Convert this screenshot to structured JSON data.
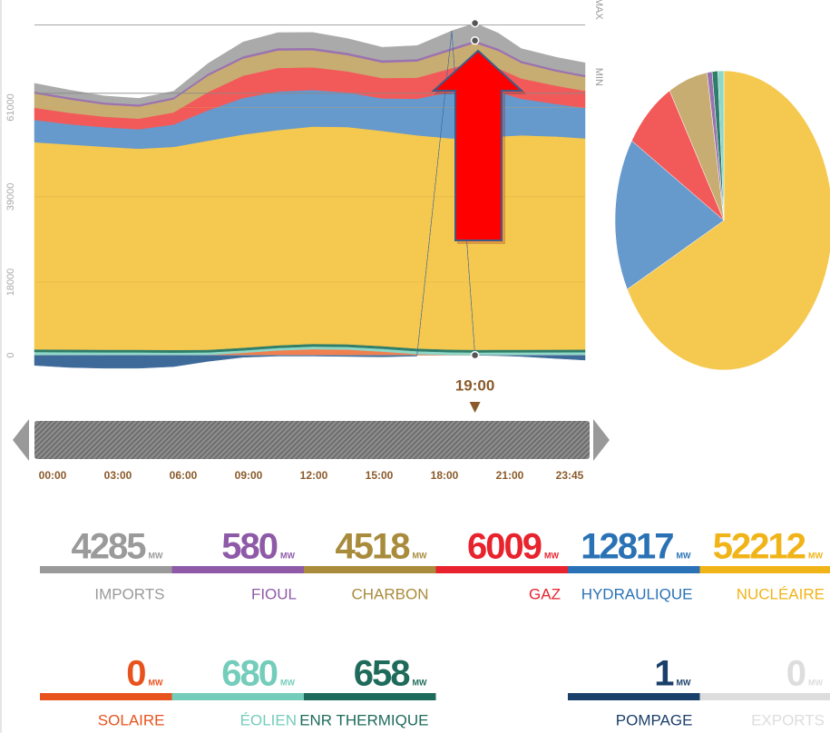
{
  "chart_data": [
    {
      "type": "area",
      "x": [
        0,
        1.5,
        3,
        4.5,
        6,
        7.5,
        9,
        10.5,
        12,
        13.5,
        15,
        16.5,
        18,
        19,
        20,
        21,
        22.5,
        23.75
      ],
      "xlim": [
        0,
        23.75
      ],
      "xticks": [
        {
          "value": 0,
          "label": "00:00"
        },
        {
          "value": 3,
          "label": "03:00"
        },
        {
          "value": 6,
          "label": "06:00"
        },
        {
          "value": 9,
          "label": "09:00"
        },
        {
          "value": 12,
          "label": "12:00"
        },
        {
          "value": 15,
          "label": "15:00"
        },
        {
          "value": 18,
          "label": "18:00"
        },
        {
          "value": 21,
          "label": "21:00"
        },
        {
          "value": 23.75,
          "label": "23:45"
        }
      ],
      "ylim": [
        -3000,
        83000
      ],
      "yticks": [
        0,
        18000,
        39000,
        61000
      ],
      "grid": true,
      "annotations": [
        {
          "label": "MAX",
          "value": 81300
        },
        {
          "label": "MIN",
          "value": 64500
        }
      ],
      "cursor": {
        "value": 19,
        "label": "19:00"
      },
      "series": [
        {
          "name": "Solaire",
          "color": "#f08050",
          "values": [
            0,
            0,
            0,
            0,
            0,
            100,
            600,
            1200,
            1500,
            1400,
            900,
            300,
            50,
            0,
            0,
            0,
            0,
            0
          ]
        },
        {
          "name": "Éolien",
          "color": "#8ed8c8",
          "values": [
            800,
            750,
            700,
            700,
            650,
            600,
            600,
            600,
            650,
            650,
            700,
            700,
            680,
            680,
            700,
            700,
            720,
            750
          ]
        },
        {
          "name": "ENR thermique",
          "color": "#2f7d6b",
          "values": [
            650,
            650,
            650,
            650,
            650,
            650,
            650,
            650,
            650,
            650,
            650,
            650,
            658,
            658,
            650,
            650,
            650,
            650
          ]
        },
        {
          "name": "Nucléaire",
          "color": "#f5c84f",
          "values": [
            51000,
            50500,
            50000,
            49500,
            50000,
            51500,
            52500,
            53000,
            53500,
            53500,
            53000,
            52500,
            52000,
            52212,
            52500,
            52800,
            52500,
            52000
          ]
        },
        {
          "name": "Hydraulique",
          "color": "#6699cc",
          "values": [
            5500,
            5000,
            4800,
            4800,
            5500,
            7500,
            9000,
            9500,
            9000,
            8500,
            8000,
            9000,
            11500,
            12817,
            11000,
            9000,
            8000,
            7500
          ]
        },
        {
          "name": "Gaz",
          "color": "#f25a5a",
          "values": [
            3000,
            2800,
            2600,
            2600,
            3000,
            4500,
            5500,
            5800,
            5600,
            5200,
            5000,
            5200,
            5800,
            6009,
            5800,
            5000,
            4500,
            4200
          ]
        },
        {
          "name": "Charbon",
          "color": "#c8ad72",
          "values": [
            3500,
            3300,
            3000,
            3000,
            3200,
            4000,
            4200,
            4300,
            4200,
            4000,
            3800,
            4000,
            4400,
            4518,
            4300,
            3800,
            3500,
            3400
          ]
        },
        {
          "name": "Fioul",
          "color": "#9b72b0",
          "values": [
            500,
            500,
            500,
            500,
            500,
            550,
            580,
            580,
            580,
            580,
            580,
            580,
            580,
            580,
            580,
            550,
            500,
            500
          ]
        },
        {
          "name": "Imports",
          "color": "#aaaaaa",
          "values": [
            2000,
            1800,
            1600,
            1500,
            1500,
            2500,
            3500,
            3800,
            3800,
            3500,
            3200,
            3300,
            4200,
            4285,
            3800,
            3000,
            3000,
            3000
          ]
        },
        {
          "name": "Pompage",
          "color": "#3e6a9a",
          "values": [
            -2500,
            -3000,
            -3200,
            -3200,
            -2800,
            -1500,
            -500,
            -200,
            -200,
            -300,
            -400,
            -200,
            0,
            -1,
            -100,
            -300,
            -800,
            -1200
          ]
        }
      ]
    },
    {
      "type": "pie",
      "values": [
        52212,
        12817,
        6009,
        4518,
        580,
        658,
        680
      ],
      "colors": [
        "#f5c84f",
        "#6699cc",
        "#f25a5a",
        "#c8ad72",
        "#9b72b0",
        "#2f7d6b",
        "#8ed8c8"
      ]
    }
  ],
  "stats": [
    [
      {
        "value": 4285,
        "unit": "MW",
        "name": "IMPORTS",
        "color": "#9a9a9a"
      },
      {
        "value": 580,
        "unit": "MW",
        "name": "FIOUL",
        "color": "#8e5aa8"
      },
      {
        "value": 4518,
        "unit": "MW",
        "name": "CHARBON",
        "color": "#a98b3c"
      },
      {
        "value": 6009,
        "unit": "MW",
        "name": "GAZ",
        "color": "#e8232d"
      },
      {
        "value": 12817,
        "unit": "MW",
        "name": "HYDRAULIQUE",
        "color": "#2a72b5"
      },
      {
        "value": 52212,
        "unit": "MW",
        "name": "NUCLÉAIRE",
        "color": "#f1b418"
      }
    ],
    [
      {
        "value": 0,
        "unit": "MW",
        "name": "SOLAIRE",
        "color": "#e8531d"
      },
      {
        "value": 680,
        "unit": "MW",
        "name": "ÉOLIEN",
        "color": "#74cdbb"
      },
      {
        "value": 658,
        "unit": "MW",
        "name": "ENR THERMIQUE",
        "color": "#1e6b5b"
      },
      {
        "value": 1,
        "unit": "MW",
        "name": "POMPAGE",
        "color": "#1b3f6b"
      },
      {
        "value": 0,
        "unit": "MW",
        "name": "EXPORTS",
        "color": "#dddddd"
      }
    ]
  ]
}
